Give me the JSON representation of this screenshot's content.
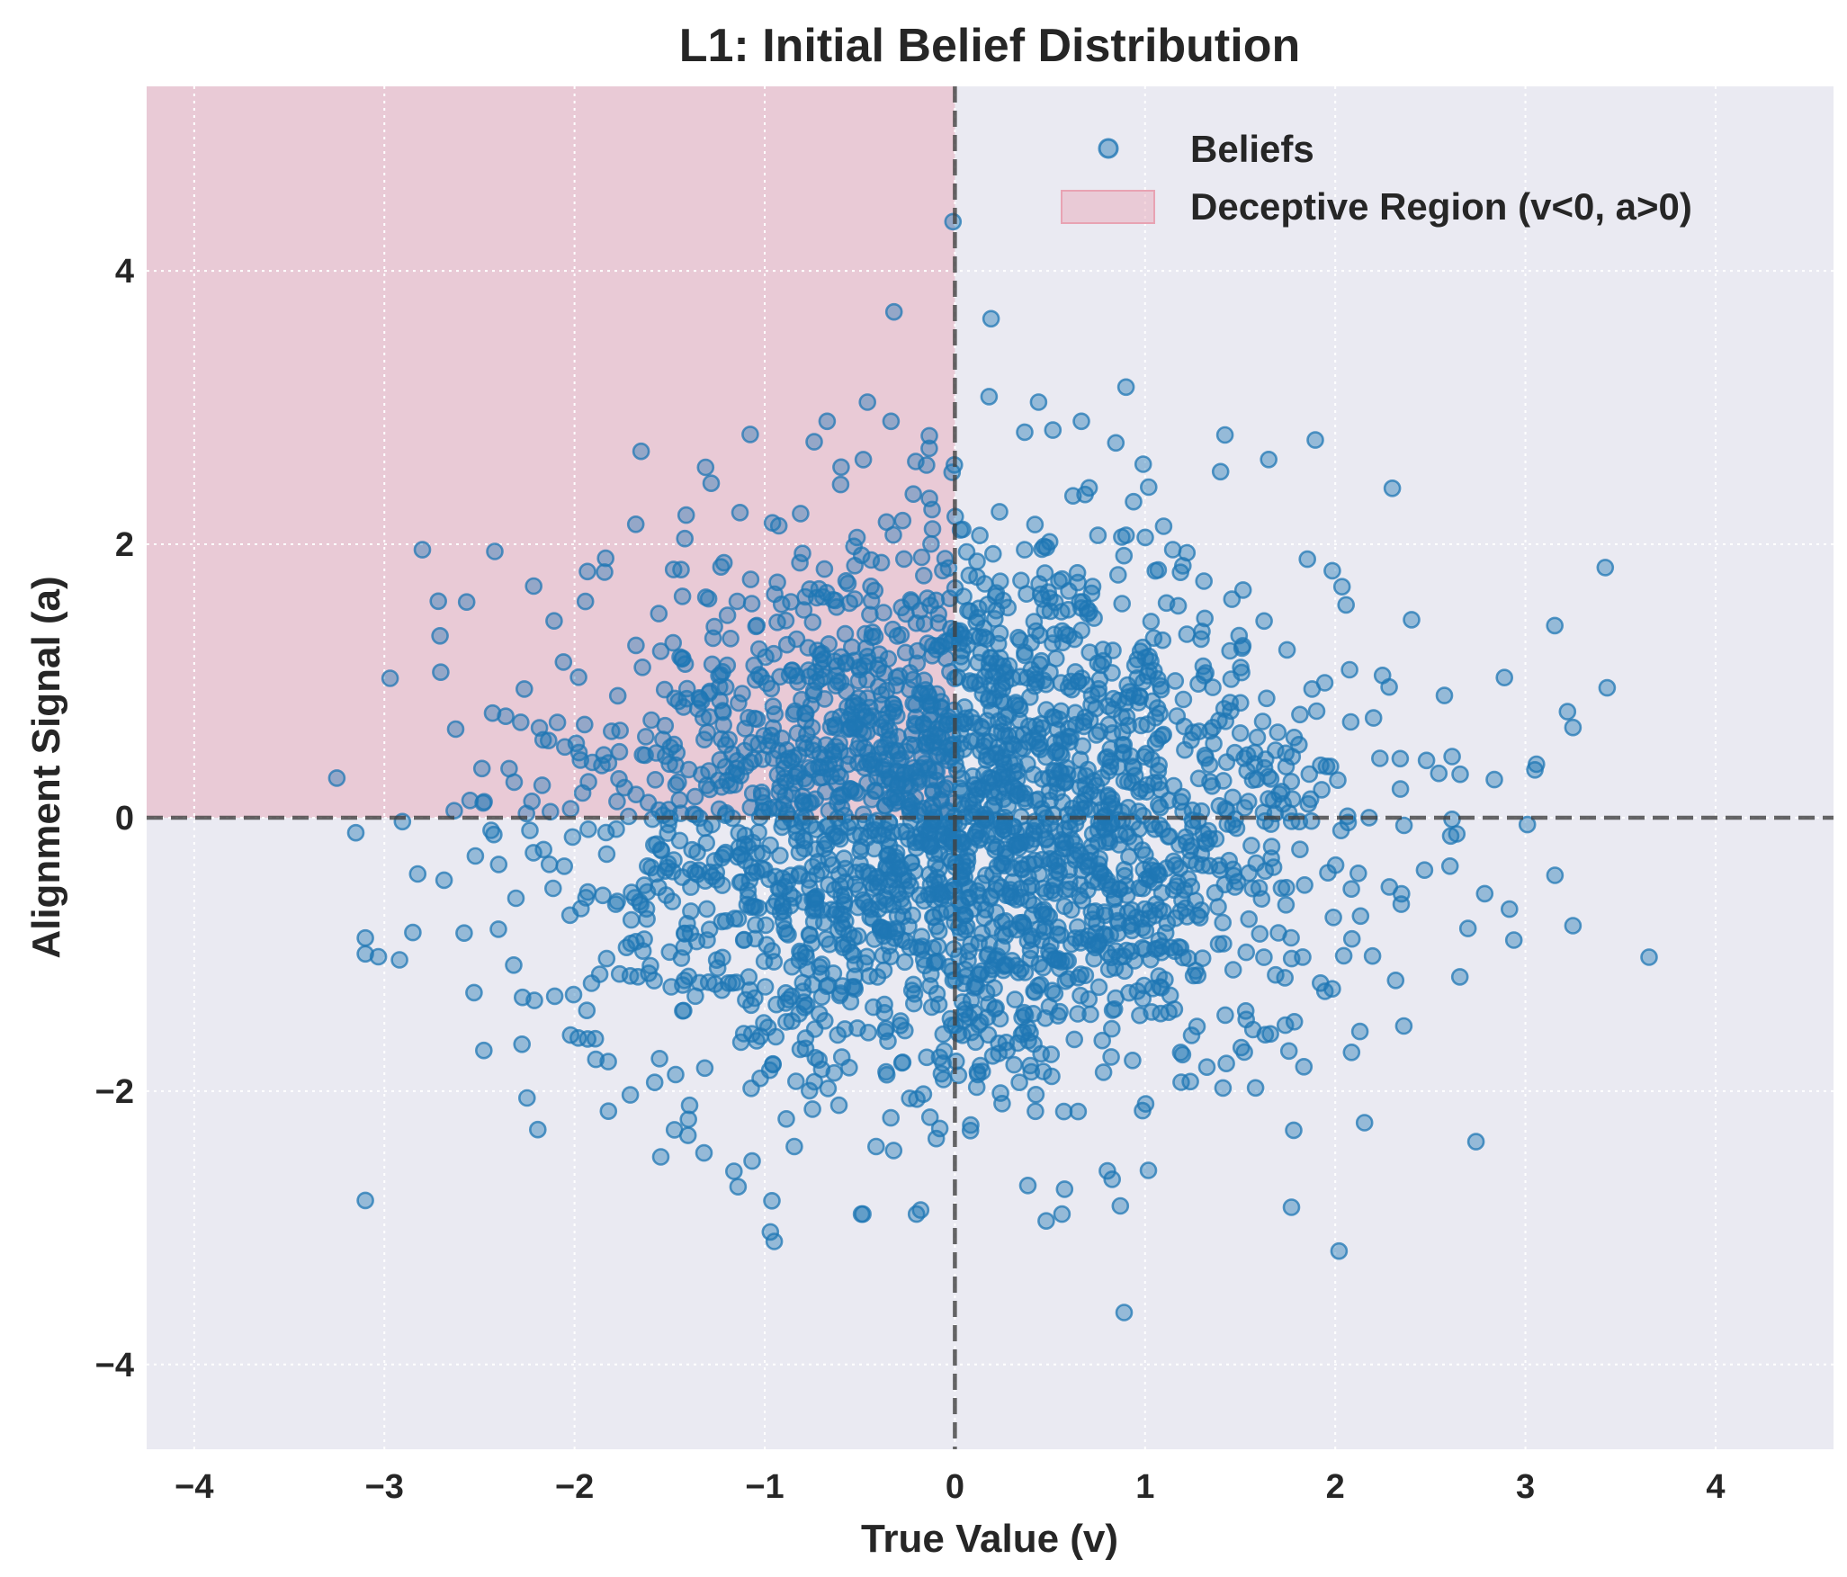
{
  "chart_data": {
    "type": "scatter",
    "title": "L1: Initial Belief Distribution",
    "xlabel": "True Value (v)",
    "ylabel": "Alignment Signal (a)",
    "xlim": [
      -4.25,
      4.62
    ],
    "ylim": [
      -4.62,
      5.35
    ],
    "xticks": [
      -4,
      -3,
      -2,
      -1,
      0,
      1,
      2,
      3,
      4
    ],
    "yticks": [
      -4,
      -2,
      0,
      2,
      4
    ],
    "xtick_labels": [
      "−4",
      "−3",
      "−2",
      "−1",
      "0",
      "1",
      "2",
      "3",
      "4"
    ],
    "ytick_labels": [
      "−4",
      "−2",
      "0",
      "2",
      "4"
    ],
    "grid": true,
    "legend_position": "top-right",
    "reference_lines": [
      {
        "axis": "x",
        "value": 0,
        "style": "dashed"
      },
      {
        "axis": "y",
        "value": 0,
        "style": "dashed"
      }
    ],
    "shaded_region": {
      "label": "Deceptive Region (v<0, a>0)",
      "x_range": [
        -4.25,
        0
      ],
      "y_range": [
        0,
        5.35
      ],
      "color": "#e8a3b3"
    },
    "series": [
      {
        "name": "Beliefs",
        "color": "#1f77b4",
        "distribution": "bivariate standard normal",
        "n_generated": 2500,
        "notable_points": [
          {
            "x": -0.01,
            "y": 4.36
          },
          {
            "x": -0.32,
            "y": 3.7
          },
          {
            "x": 0.19,
            "y": 3.65
          },
          {
            "x": 0.9,
            "y": 3.15
          },
          {
            "x": -0.46,
            "y": 3.04
          },
          {
            "x": 0.44,
            "y": 3.04
          },
          {
            "x": 0.18,
            "y": 3.08
          },
          {
            "x": 1.42,
            "y": 2.8
          },
          {
            "x": -1.65,
            "y": 2.68
          },
          {
            "x": -0.74,
            "y": 2.75
          },
          {
            "x": 1.65,
            "y": 2.62
          },
          {
            "x": 2.3,
            "y": 2.41
          },
          {
            "x": 3.42,
            "y": 1.83
          },
          {
            "x": 3.43,
            "y": 0.95
          },
          {
            "x": 3.05,
            "y": 0.35
          },
          {
            "x": 3.25,
            "y": 0.66
          },
          {
            "x": 3.01,
            "y": -0.05
          },
          {
            "x": 3.65,
            "y": -1.02
          },
          {
            "x": 3.25,
            "y": -0.79
          },
          {
            "x": -3.25,
            "y": 0.29
          },
          {
            "x": -3.15,
            "y": -0.11
          },
          {
            "x": -2.97,
            "y": 1.02
          },
          {
            "x": -2.8,
            "y": 1.96
          },
          {
            "x": -2.92,
            "y": -1.04
          },
          {
            "x": -2.85,
            "y": -0.84
          },
          {
            "x": -2.25,
            "y": -2.05
          },
          {
            "x": -0.95,
            "y": -3.1
          },
          {
            "x": -0.97,
            "y": -3.03
          },
          {
            "x": 0.89,
            "y": -3.62
          },
          {
            "x": 2.02,
            "y": -3.17
          },
          {
            "x": 1.77,
            "y": -2.85
          },
          {
            "x": 0.87,
            "y": -2.84
          },
          {
            "x": 0.48,
            "y": -2.95
          },
          {
            "x": 2.74,
            "y": -2.37
          },
          {
            "x": -0.18,
            "y": -2.87
          },
          {
            "x": -1.14,
            "y": -2.7
          }
        ]
      }
    ]
  },
  "legend": {
    "items": [
      {
        "label": "Beliefs",
        "kind": "marker",
        "color": "#1f77b4"
      },
      {
        "label": "Deceptive Region (v<0, a>0)",
        "kind": "patch",
        "color": "#e8a3b3"
      }
    ]
  },
  "colors": {
    "plot_background": "#eaeaf2",
    "region_fill": "#e8a3b3",
    "point": "#1f77b4",
    "grid": "#ffffff",
    "reference_line": "#404040",
    "text": "#262626"
  }
}
